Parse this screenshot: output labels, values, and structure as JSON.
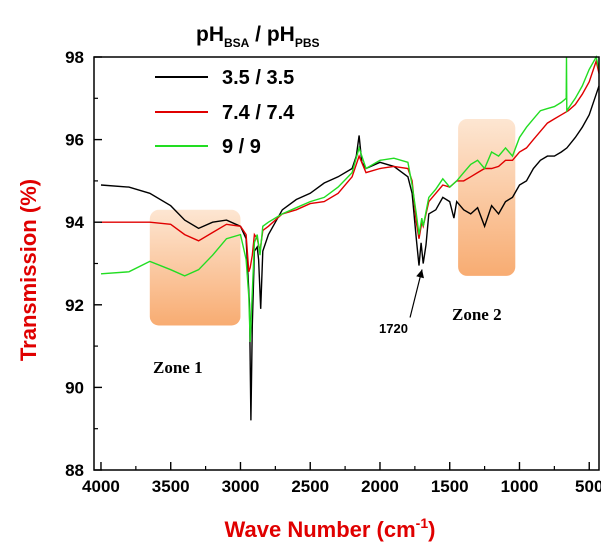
{
  "chart_data": {
    "type": "line",
    "xlabel": "Wave Number (cm",
    "xlabel_sup": "-1",
    "xlabel_end": ")",
    "ylabel": "Transmission (%)",
    "xlim": [
      4050,
      430
    ],
    "ylim": [
      88,
      98
    ],
    "x_reversed": true,
    "x_ticks": [
      4000,
      3500,
      3000,
      2500,
      2000,
      1500,
      1000,
      500
    ],
    "y_ticks": [
      88,
      90,
      92,
      94,
      96,
      98
    ],
    "grid": false,
    "legend": {
      "title_main": "pH",
      "title_sub1": "BSA",
      "title_sep": " / pH",
      "title_sub2": "PBS",
      "placement": "top-left"
    },
    "annotations": {
      "zone1": {
        "label": "Zone 1",
        "x_range": [
          3650,
          3000
        ],
        "y_range": [
          91.5,
          94.3
        ]
      },
      "zone2": {
        "label": "Zone 2",
        "x_range": [
          1440,
          1030
        ],
        "y_range": [
          92.7,
          96.5
        ]
      },
      "peak": {
        "label": "1720",
        "x": 1720,
        "y": 93.0
      }
    },
    "series": [
      {
        "name": "3.5 / 3.5",
        "color": "#000000",
        "points": [
          [
            4000,
            94.9
          ],
          [
            3800,
            94.85
          ],
          [
            3650,
            94.7
          ],
          [
            3500,
            94.4
          ],
          [
            3400,
            94.05
          ],
          [
            3300,
            93.85
          ],
          [
            3200,
            94.0
          ],
          [
            3100,
            94.05
          ],
          [
            3000,
            93.9
          ],
          [
            2960,
            93.6
          ],
          [
            2935,
            92.0
          ],
          [
            2925,
            89.2
          ],
          [
            2915,
            91.5
          ],
          [
            2900,
            93.3
          ],
          [
            2880,
            93.4
          ],
          [
            2870,
            93.1
          ],
          [
            2855,
            91.9
          ],
          [
            2840,
            93.3
          ],
          [
            2800,
            93.7
          ],
          [
            2700,
            94.3
          ],
          [
            2600,
            94.55
          ],
          [
            2500,
            94.7
          ],
          [
            2400,
            94.95
          ],
          [
            2300,
            95.1
          ],
          [
            2200,
            95.3
          ],
          [
            2170,
            95.6
          ],
          [
            2150,
            96.1
          ],
          [
            2130,
            95.45
          ],
          [
            2100,
            95.3
          ],
          [
            2000,
            95.45
          ],
          [
            1900,
            95.35
          ],
          [
            1800,
            95.1
          ],
          [
            1770,
            94.7
          ],
          [
            1740,
            93.6
          ],
          [
            1720,
            92.95
          ],
          [
            1705,
            93.5
          ],
          [
            1690,
            93.0
          ],
          [
            1670,
            93.45
          ],
          [
            1650,
            94.2
          ],
          [
            1600,
            94.3
          ],
          [
            1550,
            94.6
          ],
          [
            1500,
            94.5
          ],
          [
            1470,
            94.1
          ],
          [
            1450,
            94.5
          ],
          [
            1400,
            94.3
          ],
          [
            1350,
            94.2
          ],
          [
            1300,
            94.35
          ],
          [
            1250,
            93.9
          ],
          [
            1200,
            94.4
          ],
          [
            1150,
            94.2
          ],
          [
            1100,
            94.5
          ],
          [
            1050,
            94.6
          ],
          [
            1000,
            94.9
          ],
          [
            950,
            95.0
          ],
          [
            900,
            95.3
          ],
          [
            850,
            95.5
          ],
          [
            800,
            95.6
          ],
          [
            750,
            95.6
          ],
          [
            700,
            95.7
          ],
          [
            660,
            95.8
          ],
          [
            600,
            96.05
          ],
          [
            550,
            96.3
          ],
          [
            500,
            96.6
          ],
          [
            450,
            97.1
          ],
          [
            430,
            97.3
          ]
        ]
      },
      {
        "name": "7.4 / 7.4",
        "color": "#e00000",
        "points": [
          [
            4000,
            94.0
          ],
          [
            3800,
            94.0
          ],
          [
            3650,
            94.0
          ],
          [
            3500,
            93.95
          ],
          [
            3400,
            93.7
          ],
          [
            3300,
            93.55
          ],
          [
            3200,
            93.75
          ],
          [
            3100,
            93.95
          ],
          [
            3000,
            93.9
          ],
          [
            2960,
            93.7
          ],
          [
            2940,
            92.8
          ],
          [
            2930,
            92.9
          ],
          [
            2915,
            93.2
          ],
          [
            2900,
            93.7
          ],
          [
            2880,
            93.6
          ],
          [
            2860,
            93.3
          ],
          [
            2840,
            93.8
          ],
          [
            2800,
            93.9
          ],
          [
            2700,
            94.2
          ],
          [
            2600,
            94.3
          ],
          [
            2500,
            94.45
          ],
          [
            2400,
            94.5
          ],
          [
            2300,
            94.7
          ],
          [
            2200,
            95.1
          ],
          [
            2150,
            95.6
          ],
          [
            2100,
            95.2
          ],
          [
            2000,
            95.3
          ],
          [
            1900,
            95.35
          ],
          [
            1800,
            95.3
          ],
          [
            1770,
            95.0
          ],
          [
            1740,
            94.0
          ],
          [
            1720,
            93.6
          ],
          [
            1700,
            94.0
          ],
          [
            1690,
            93.9
          ],
          [
            1650,
            94.5
          ],
          [
            1600,
            94.7
          ],
          [
            1550,
            94.9
          ],
          [
            1500,
            94.85
          ],
          [
            1450,
            95.0
          ],
          [
            1400,
            95.0
          ],
          [
            1350,
            95.1
          ],
          [
            1300,
            95.2
          ],
          [
            1250,
            95.3
          ],
          [
            1200,
            95.3
          ],
          [
            1150,
            95.35
          ],
          [
            1100,
            95.5
          ],
          [
            1050,
            95.5
          ],
          [
            1000,
            95.7
          ],
          [
            950,
            95.8
          ],
          [
            900,
            96.0
          ],
          [
            850,
            96.2
          ],
          [
            800,
            96.4
          ],
          [
            750,
            96.5
          ],
          [
            700,
            96.6
          ],
          [
            650,
            96.7
          ],
          [
            600,
            96.85
          ],
          [
            550,
            97.1
          ],
          [
            500,
            97.4
          ],
          [
            450,
            97.9
          ],
          [
            430,
            97.6
          ]
        ]
      },
      {
        "name": "9 / 9",
        "color": "#22dd22",
        "points": [
          [
            4000,
            92.75
          ],
          [
            3800,
            92.8
          ],
          [
            3650,
            93.05
          ],
          [
            3500,
            92.85
          ],
          [
            3400,
            92.7
          ],
          [
            3300,
            92.85
          ],
          [
            3200,
            93.2
          ],
          [
            3100,
            93.6
          ],
          [
            3000,
            93.7
          ],
          [
            2960,
            93.1
          ],
          [
            2940,
            92.2
          ],
          [
            2930,
            91.1
          ],
          [
            2915,
            92.3
          ],
          [
            2900,
            93.5
          ],
          [
            2880,
            93.7
          ],
          [
            2860,
            93.2
          ],
          [
            2840,
            93.9
          ],
          [
            2800,
            94.0
          ],
          [
            2700,
            94.2
          ],
          [
            2600,
            94.35
          ],
          [
            2500,
            94.5
          ],
          [
            2400,
            94.6
          ],
          [
            2300,
            94.85
          ],
          [
            2200,
            95.2
          ],
          [
            2150,
            95.8
          ],
          [
            2100,
            95.3
          ],
          [
            2000,
            95.5
          ],
          [
            1900,
            95.55
          ],
          [
            1800,
            95.45
          ],
          [
            1770,
            94.9
          ],
          [
            1740,
            94.2
          ],
          [
            1720,
            93.7
          ],
          [
            1700,
            94.1
          ],
          [
            1690,
            93.9
          ],
          [
            1650,
            94.6
          ],
          [
            1600,
            94.8
          ],
          [
            1550,
            95.05
          ],
          [
            1500,
            94.85
          ],
          [
            1450,
            95.0
          ],
          [
            1400,
            95.2
          ],
          [
            1350,
            95.4
          ],
          [
            1300,
            95.5
          ],
          [
            1250,
            95.3
          ],
          [
            1200,
            95.7
          ],
          [
            1150,
            95.6
          ],
          [
            1100,
            95.8
          ],
          [
            1050,
            95.6
          ],
          [
            1000,
            96.05
          ],
          [
            950,
            96.3
          ],
          [
            900,
            96.5
          ],
          [
            850,
            96.7
          ],
          [
            800,
            96.75
          ],
          [
            750,
            96.8
          ],
          [
            700,
            96.9
          ],
          [
            665,
            97.0
          ],
          [
            663,
            98.0
          ],
          [
            661,
            96.7
          ],
          [
            600,
            97.0
          ],
          [
            550,
            97.3
          ],
          [
            500,
            97.7
          ],
          [
            450,
            98.0
          ],
          [
            430,
            97.7
          ]
        ]
      }
    ]
  }
}
